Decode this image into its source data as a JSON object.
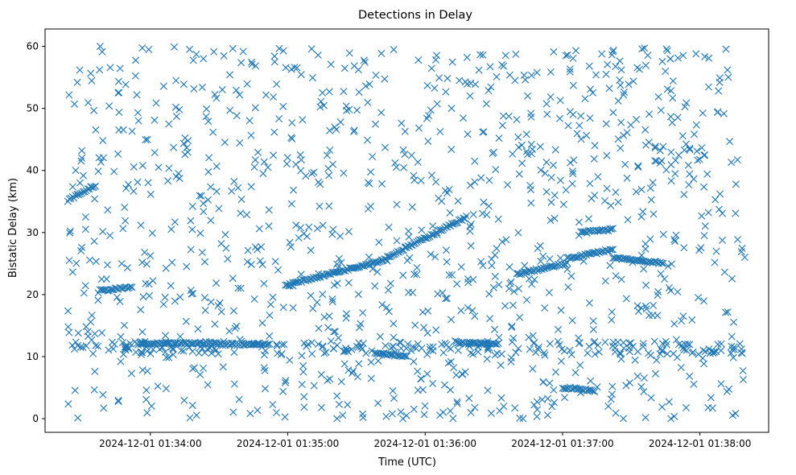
{
  "chart_data": {
    "type": "scatter",
    "title": "Detections in Delay",
    "xlabel": "Time (UTC)",
    "ylabel": "Bistatic Delay (km)",
    "marker": "x",
    "color": "#1f77b4",
    "grid": false,
    "xlim": [
      "2024-12-01 01:33:14",
      "2024-12-01 01:38:30"
    ],
    "ylim": [
      -2.2,
      62.8
    ],
    "x_ticks": [
      "2024-12-01 01:34:00",
      "2024-12-01 01:35:00",
      "2024-12-01 01:36:00",
      "2024-12-01 01:37:00",
      "2024-12-01 01:38:00"
    ],
    "y_ticks": [
      0,
      10,
      20,
      30,
      40,
      50,
      60
    ],
    "tracks": [
      {
        "start": "2024-12-01 01:33:24",
        "end": "2024-12-01 01:33:36",
        "delay_start": 35.2,
        "delay_end": 37.6
      },
      {
        "start": "2024-12-01 01:33:38",
        "end": "2024-12-01 01:33:52",
        "delay_start": 20.6,
        "delay_end": 21.2
      },
      {
        "start": "2024-12-01 01:33:54",
        "end": "2024-12-01 01:34:29",
        "delay_start": 12.0,
        "delay_end": 12.2
      },
      {
        "start": "2024-12-01 01:34:29",
        "end": "2024-12-01 01:34:52",
        "delay_start": 12.0,
        "delay_end": 12.0
      },
      {
        "start": "2024-12-01 01:34:59",
        "end": "2024-12-01 01:35:41",
        "delay_start": 21.5,
        "delay_end": 25.5
      },
      {
        "start": "2024-12-01 01:35:41",
        "end": "2024-12-01 01:36:18",
        "delay_start": 25.5,
        "delay_end": 32.5
      },
      {
        "start": "2024-12-01 01:35:38",
        "end": "2024-12-01 01:35:52",
        "delay_start": 10.5,
        "delay_end": 10.0
      },
      {
        "start": "2024-12-01 01:36:15",
        "end": "2024-12-01 01:36:32",
        "delay_start": 12.2,
        "delay_end": 12.0
      },
      {
        "start": "2024-12-01 01:36:40",
        "end": "2024-12-01 01:37:02",
        "delay_start": 23.3,
        "delay_end": 25.0
      },
      {
        "start": "2024-12-01 01:37:02",
        "end": "2024-12-01 01:37:22",
        "delay_start": 25.8,
        "delay_end": 27.3
      },
      {
        "start": "2024-12-01 01:37:08",
        "end": "2024-12-01 01:37:22",
        "delay_start": 30.0,
        "delay_end": 30.5
      },
      {
        "start": "2024-12-01 01:37:22",
        "end": "2024-12-01 01:37:44",
        "delay_start": 26.0,
        "delay_end": 25.0
      },
      {
        "start": "2024-12-01 01:37:00",
        "end": "2024-12-01 01:37:14",
        "delay_start": 5.0,
        "delay_end": 4.5
      }
    ],
    "background": {
      "noise_points": 1300,
      "delay_range": [
        0,
        60
      ],
      "ranges": {
        "uniform_0_60_0": {
          "delay_range": [
            0,
            60
          ]
        },
        "lower_band": {
          "delay_range": [
            10.3,
            12.5
          ]
        }
      }
    }
  }
}
